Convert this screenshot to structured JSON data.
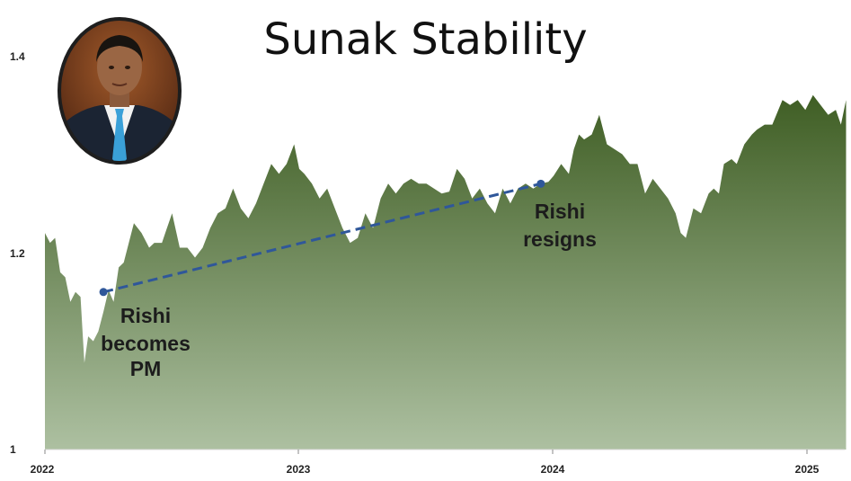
{
  "chart_data": {
    "type": "area",
    "title": "Sunak Stability",
    "xlabel": "",
    "ylabel": "",
    "xlim": [
      2022.0,
      2025.15
    ],
    "ylim": [
      1.0,
      1.45
    ],
    "yticks": [
      "1",
      "1.2",
      "1.4"
    ],
    "xticks": [
      "2022",
      "2023",
      "2024",
      "2025"
    ],
    "grid": false,
    "colors": {
      "area_top": "#3f5e24",
      "area_bottom": "#adc0a1",
      "dashed_line": "#2f579a"
    },
    "x": [
      2022.0,
      2022.02,
      2022.04,
      2022.06,
      2022.08,
      2022.1,
      2022.12,
      2022.14,
      2022.155,
      2022.17,
      2022.19,
      2022.21,
      2022.23,
      2022.25,
      2022.27,
      2022.29,
      2022.31,
      2022.35,
      2022.38,
      2022.41,
      2022.43,
      2022.46,
      2022.48,
      2022.5,
      2022.53,
      2022.56,
      2022.59,
      2022.62,
      2022.65,
      2022.68,
      2022.71,
      2022.74,
      2022.77,
      2022.8,
      2022.83,
      2022.86,
      2022.89,
      2022.92,
      2022.95,
      2022.98,
      2023.0,
      2023.02,
      2023.05,
      2023.08,
      2023.11,
      2023.14,
      2023.17,
      2023.2,
      2023.23,
      2023.26,
      2023.29,
      2023.32,
      2023.35,
      2023.38,
      2023.41,
      2023.44,
      2023.47,
      2023.5,
      2023.53,
      2023.56,
      2023.59,
      2023.62,
      2023.65,
      2023.68,
      2023.71,
      2023.74,
      2023.77,
      2023.8,
      2023.83,
      2023.86,
      2023.89,
      2023.92,
      2023.95,
      2023.98,
      2024.0,
      2024.03,
      2024.06,
      2024.08,
      2024.1,
      2024.12,
      2024.15,
      2024.18,
      2024.21,
      2024.24,
      2024.27,
      2024.3,
      2024.33,
      2024.36,
      2024.39,
      2024.42,
      2024.45,
      2024.48,
      2024.5,
      2024.52,
      2024.55,
      2024.58,
      2024.61,
      2024.63,
      2024.65,
      2024.67,
      2024.7,
      2024.72,
      2024.75,
      2024.78,
      2024.8,
      2024.83,
      2024.86,
      2024.9,
      2024.93,
      2024.96,
      2024.99,
      2025.02,
      2025.05,
      2025.08,
      2025.11,
      2025.13,
      2025.15
    ],
    "series": [
      {
        "values": [
          1.22,
          1.21,
          1.215,
          1.18,
          1.175,
          1.15,
          1.16,
          1.155,
          1.088,
          1.115,
          1.11,
          1.12,
          1.14,
          1.162,
          1.15,
          1.185,
          1.19,
          1.23,
          1.22,
          1.205,
          1.21,
          1.21,
          1.225,
          1.24,
          1.205,
          1.205,
          1.195,
          1.205,
          1.225,
          1.24,
          1.245,
          1.265,
          1.245,
          1.235,
          1.25,
          1.27,
          1.29,
          1.28,
          1.29,
          1.31,
          1.285,
          1.28,
          1.27,
          1.255,
          1.265,
          1.245,
          1.225,
          1.21,
          1.215,
          1.24,
          1.225,
          1.255,
          1.27,
          1.26,
          1.27,
          1.275,
          1.27,
          1.27,
          1.265,
          1.26,
          1.262,
          1.285,
          1.275,
          1.255,
          1.265,
          1.25,
          1.24,
          1.265,
          1.25,
          1.265,
          1.27,
          1.265,
          1.27,
          1.272,
          1.278,
          1.29,
          1.28,
          1.305,
          1.32,
          1.315,
          1.32,
          1.34,
          1.31,
          1.305,
          1.3,
          1.29,
          1.29,
          1.26,
          1.275,
          1.265,
          1.255,
          1.24,
          1.22,
          1.215,
          1.245,
          1.24,
          1.26,
          1.265,
          1.26,
          1.29,
          1.295,
          1.29,
          1.31,
          1.32,
          1.325,
          1.33,
          1.33,
          1.355,
          1.35,
          1.355,
          1.345,
          1.36,
          1.35,
          1.34,
          1.345,
          1.33,
          1.355
        ]
      }
    ],
    "annotations": [
      {
        "lines": [
          "Rishi",
          "becomes",
          "PM"
        ],
        "x": 2022.23,
        "y": 1.16
      },
      {
        "lines": [
          "Rishi",
          "resigns"
        ],
        "x": 2023.95,
        "y": 1.27
      }
    ]
  }
}
